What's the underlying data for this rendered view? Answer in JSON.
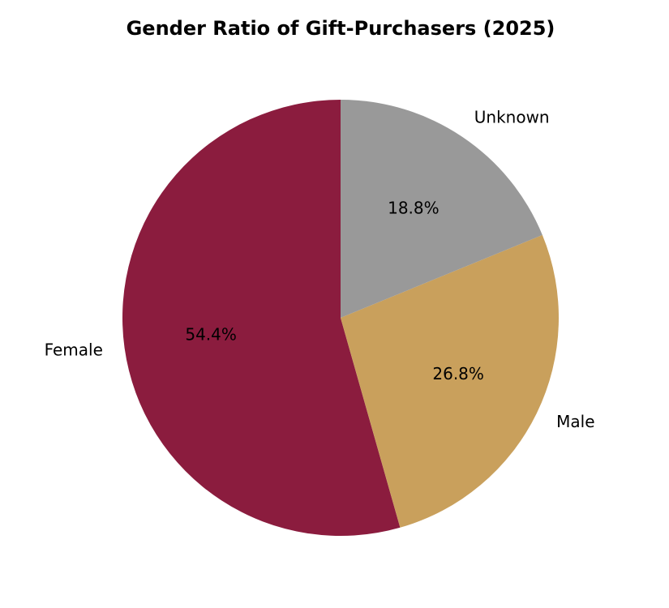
{
  "chart_data": {
    "type": "pie",
    "title": "Gender Ratio of Gift-Purchasers (2025)",
    "categories": [
      "Female",
      "Male",
      "Unknown"
    ],
    "values": [
      54.4,
      26.8,
      18.8
    ],
    "value_labels": [
      "54.4%",
      "26.8%",
      "18.8%"
    ],
    "colors": [
      "#8b1c3e",
      "#c9a05c",
      "#999999"
    ]
  }
}
